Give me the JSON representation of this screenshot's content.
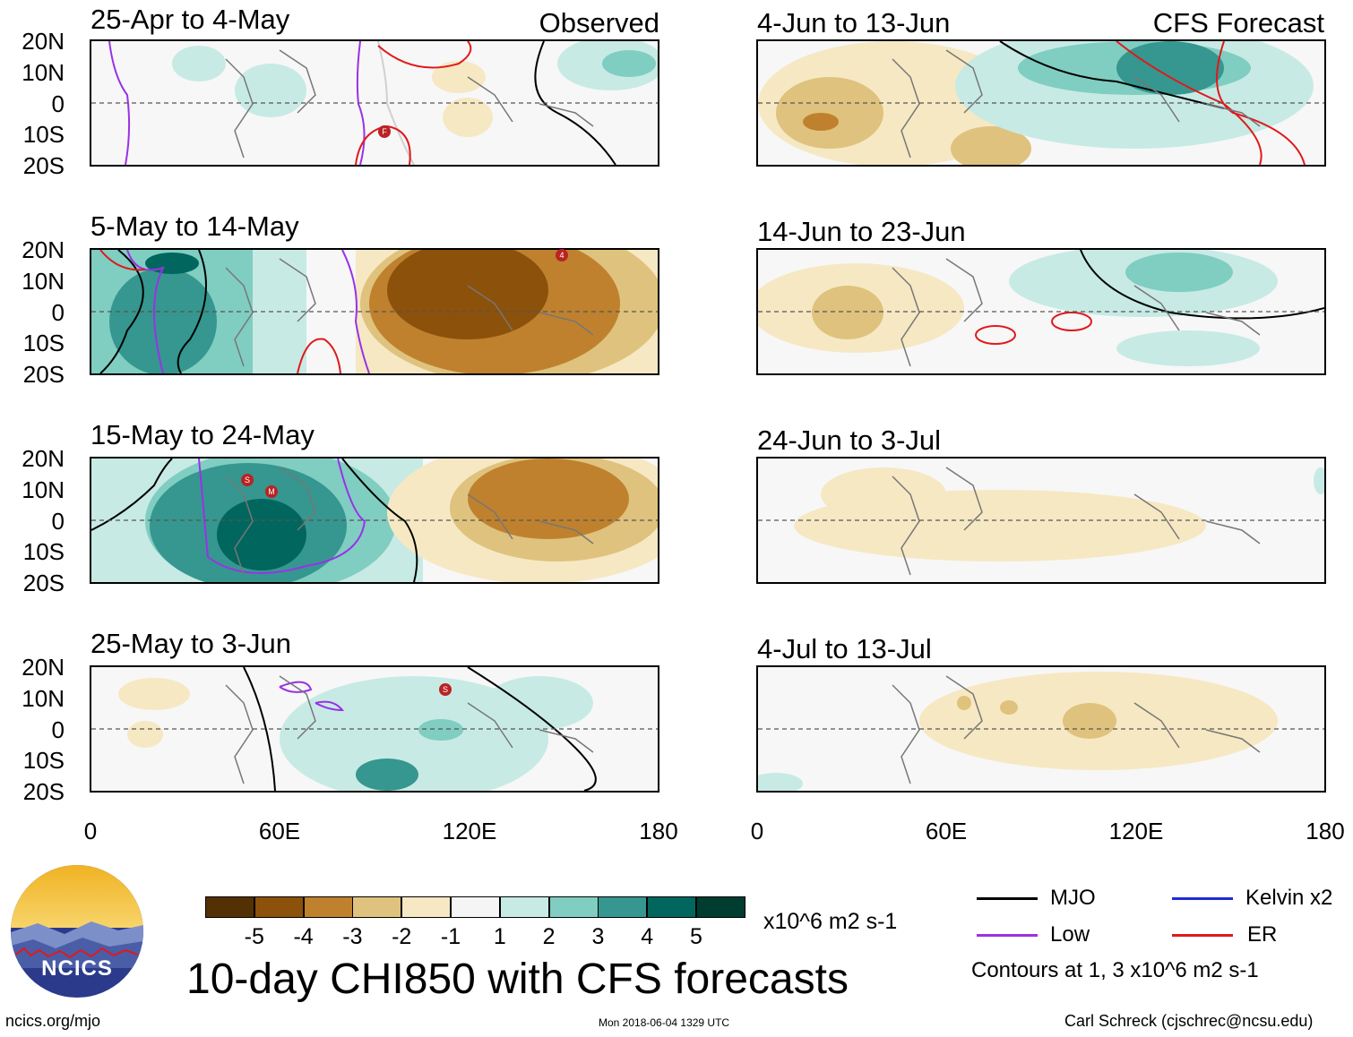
{
  "panels_left": [
    {
      "title": "25-Apr to 4-May",
      "tag": "Observed"
    },
    {
      "title": "5-May to 14-May",
      "tag": ""
    },
    {
      "title": "15-May to 24-May",
      "tag": ""
    },
    {
      "title": "25-May to 3-Jun",
      "tag": ""
    }
  ],
  "panels_right": [
    {
      "title": "4-Jun to 13-Jun",
      "tag": "CFS Forecast"
    },
    {
      "title": "14-Jun to 23-Jun",
      "tag": ""
    },
    {
      "title": "24-Jun to 3-Jul",
      "tag": ""
    },
    {
      "title": "4-Jul to 13-Jul",
      "tag": ""
    }
  ],
  "lat_labels": [
    "20N",
    "10N",
    "0",
    "10S",
    "20S"
  ],
  "lon_labels": [
    "0",
    "60E",
    "120E",
    "180"
  ],
  "storm_markers": [
    "F",
    "4",
    "S",
    "M",
    "S"
  ],
  "colorbar": {
    "colors": [
      "#543005",
      "#8c510a",
      "#bf812d",
      "#dfc27d",
      "#f6e8c3",
      "#f5f5f5",
      "#c7eae5",
      "#80cdc1",
      "#35978f",
      "#01665e",
      "#003c30"
    ],
    "labels": [
      "-5",
      "-4",
      "-3",
      "-2",
      "-1",
      "1",
      "2",
      "3",
      "4",
      "5"
    ],
    "units": "x10^6 m2 s-1"
  },
  "legend": {
    "mjo": {
      "label": "MJO",
      "color": "#000000"
    },
    "low": {
      "label": "Low",
      "color": "#9932e6"
    },
    "kelvin": {
      "label": "Kelvin x2",
      "color": "#1f2bd8"
    },
    "er": {
      "label": "ER",
      "color": "#e0191b"
    },
    "contours_note": "Contours at 1, 3 x10^6 m2 s-1"
  },
  "title": "10-day CHI850 with CFS forecasts",
  "logo_text": "NCICS",
  "footer": {
    "url": "ncics.org/mjo",
    "timestamp": "Mon 2018-06-04 1329 UTC",
    "author": "Carl Schreck (cjschrec@ncsu.edu)"
  }
}
